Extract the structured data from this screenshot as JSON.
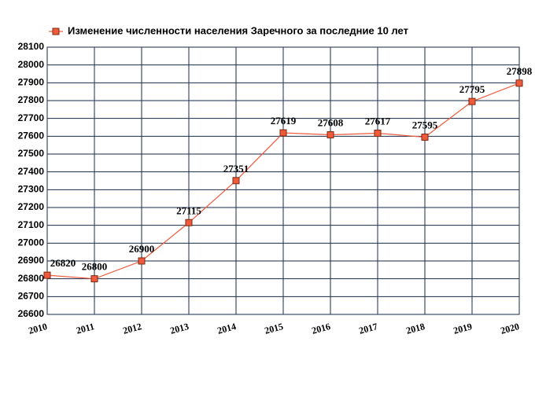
{
  "chart_data": {
    "type": "line",
    "x": [
      2010,
      2011,
      2012,
      2013,
      2014,
      2015,
      2016,
      2017,
      2018,
      2019,
      2020
    ],
    "series": [
      {
        "name": "Изменение численности населения Заречного за последние 10 лет",
        "color": "#f05a3c",
        "values": [
          26820,
          26800,
          26900,
          27115,
          27351,
          27619,
          27608,
          27617,
          27595,
          27795,
          27898
        ]
      }
    ],
    "xlim": [
      2010,
      2020
    ],
    "xticks": [
      2010,
      2011,
      2012,
      2013,
      2014,
      2015,
      2016,
      2017,
      2018,
      2019,
      2020
    ],
    "ylim": [
      26600,
      28100
    ],
    "yticks": [
      26600,
      26700,
      26800,
      26900,
      27000,
      27100,
      27200,
      27300,
      27400,
      27500,
      27600,
      27700,
      27800,
      27900,
      28000,
      28100
    ],
    "grid": true,
    "legend": "top"
  }
}
